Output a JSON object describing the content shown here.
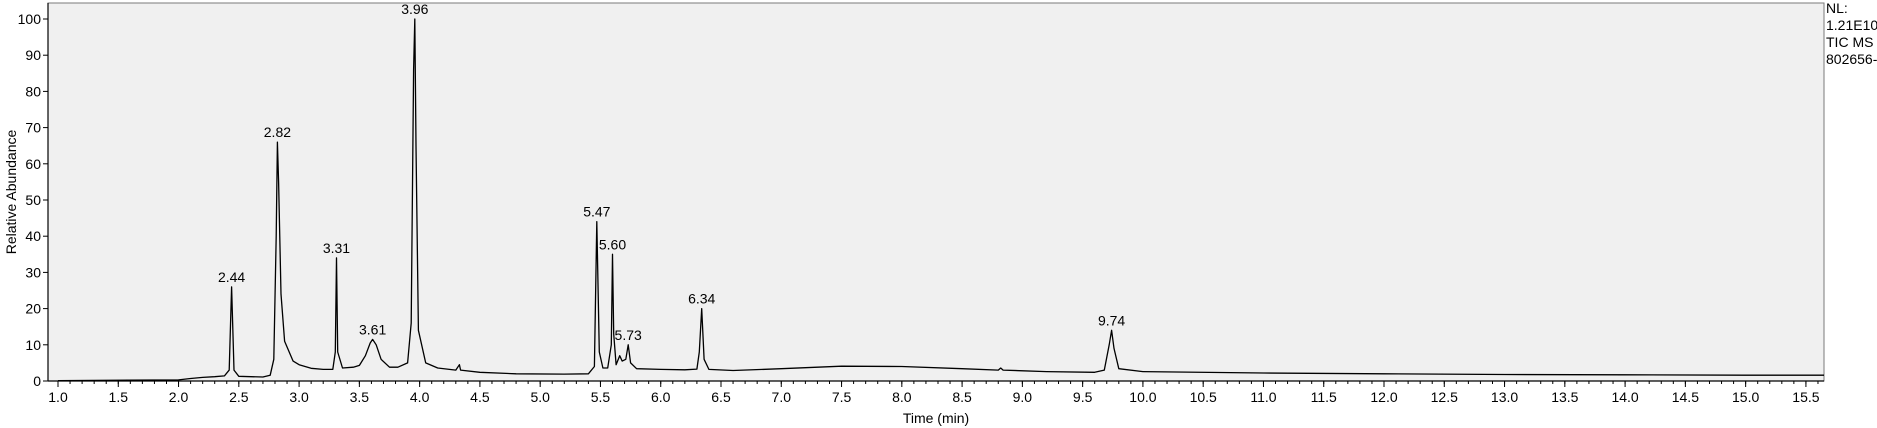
{
  "chart_data": {
    "type": "line",
    "title": "",
    "xlabel": "Time (min)",
    "ylabel": "Relative Abundance",
    "xlim": [
      1.0,
      15.65
    ],
    "ylim": [
      0,
      101
    ],
    "xticks": [
      1.0,
      1.5,
      2.0,
      2.5,
      3.0,
      3.5,
      4.0,
      4.5,
      5.0,
      5.5,
      6.0,
      6.5,
      7.0,
      7.5,
      8.0,
      8.5,
      9.0,
      9.5,
      10.0,
      10.5,
      11.0,
      11.5,
      12.0,
      12.5,
      13.0,
      13.5,
      14.0,
      14.5,
      15.0,
      15.5
    ],
    "xtick_labels": [
      "1.0",
      "1.5",
      "2.0",
      "2.5",
      "3.0",
      "3.5",
      "4.0",
      "4.5",
      "5.0",
      "5.5",
      "6.0",
      "6.5",
      "7.0",
      "7.5",
      "8.0",
      "8.5",
      "9.0",
      "9.5",
      "10.0",
      "10.5",
      "11.0",
      "11.5",
      "12.0",
      "12.5",
      "13.0",
      "13.5",
      "14.0",
      "14.5",
      "15.0",
      "15.5"
    ],
    "yticks": [
      0,
      10,
      20,
      30,
      40,
      50,
      60,
      70,
      80,
      90,
      100
    ],
    "ytick_labels": [
      "0",
      "10",
      "20",
      "30",
      "40",
      "50",
      "60",
      "70",
      "80",
      "90",
      "100"
    ],
    "grid": false,
    "background": "#f0f0f0",
    "line_color": "#000000",
    "peaks": [
      {
        "label": "2.44",
        "x": 2.44,
        "y": 26
      },
      {
        "label": "2.82",
        "x": 2.82,
        "y": 66
      },
      {
        "label": "3.31",
        "x": 3.31,
        "y": 34
      },
      {
        "label": "3.61",
        "x": 3.61,
        "y": 11.5
      },
      {
        "label": "3.96",
        "x": 3.96,
        "y": 100
      },
      {
        "label": "5.47",
        "x": 5.47,
        "y": 44
      },
      {
        "label": "5.60",
        "x": 5.6,
        "y": 35
      },
      {
        "label": "5.73",
        "x": 5.73,
        "y": 10
      },
      {
        "label": "6.34",
        "x": 6.34,
        "y": 20
      },
      {
        "label": "9.74",
        "x": 9.74,
        "y": 14
      }
    ],
    "series": [
      {
        "points": [
          [
            1.0,
            0.1
          ],
          [
            2.0,
            0.3
          ],
          [
            2.1,
            0.7
          ],
          [
            2.2,
            1.0
          ],
          [
            2.3,
            1.2
          ],
          [
            2.38,
            1.4
          ],
          [
            2.42,
            3
          ],
          [
            2.44,
            26
          ],
          [
            2.46,
            3
          ],
          [
            2.5,
            1.3
          ],
          [
            2.6,
            1.2
          ],
          [
            2.7,
            1.1
          ],
          [
            2.76,
            1.6
          ],
          [
            2.79,
            6
          ],
          [
            2.81,
            40
          ],
          [
            2.82,
            66
          ],
          [
            2.83,
            55
          ],
          [
            2.85,
            24
          ],
          [
            2.88,
            11
          ],
          [
            2.95,
            5.5
          ],
          [
            3.0,
            4.5
          ],
          [
            3.1,
            3.5
          ],
          [
            3.2,
            3.2
          ],
          [
            3.28,
            3.2
          ],
          [
            3.3,
            8
          ],
          [
            3.31,
            34
          ],
          [
            3.32,
            8
          ],
          [
            3.36,
            3.6
          ],
          [
            3.45,
            3.8
          ],
          [
            3.5,
            4.3
          ],
          [
            3.55,
            7
          ],
          [
            3.59,
            10.5
          ],
          [
            3.61,
            11.5
          ],
          [
            3.64,
            10
          ],
          [
            3.68,
            6
          ],
          [
            3.75,
            3.8
          ],
          [
            3.82,
            3.8
          ],
          [
            3.9,
            5
          ],
          [
            3.93,
            16
          ],
          [
            3.95,
            86
          ],
          [
            3.96,
            100
          ],
          [
            3.97,
            65
          ],
          [
            3.99,
            14
          ],
          [
            4.05,
            5
          ],
          [
            4.15,
            3.6
          ],
          [
            4.3,
            3
          ],
          [
            4.33,
            4.5
          ],
          [
            4.34,
            3
          ],
          [
            4.5,
            2.4
          ],
          [
            4.8,
            2
          ],
          [
            5.2,
            1.9
          ],
          [
            5.4,
            2
          ],
          [
            5.45,
            4
          ],
          [
            5.47,
            44
          ],
          [
            5.49,
            8
          ],
          [
            5.52,
            3.6
          ],
          [
            5.56,
            3.6
          ],
          [
            5.59,
            10
          ],
          [
            5.6,
            35
          ],
          [
            5.61,
            13
          ],
          [
            5.63,
            4.5
          ],
          [
            5.66,
            7
          ],
          [
            5.68,
            5.5
          ],
          [
            5.71,
            6
          ],
          [
            5.73,
            10
          ],
          [
            5.75,
            5
          ],
          [
            5.8,
            3.4
          ],
          [
            6.0,
            3.2
          ],
          [
            6.2,
            3.1
          ],
          [
            6.3,
            3.3
          ],
          [
            6.32,
            8
          ],
          [
            6.34,
            20
          ],
          [
            6.36,
            6
          ],
          [
            6.4,
            3.2
          ],
          [
            6.6,
            2.9
          ],
          [
            7.0,
            3.4
          ],
          [
            7.5,
            4.1
          ],
          [
            8.0,
            4
          ],
          [
            8.5,
            3.4
          ],
          [
            8.8,
            3
          ],
          [
            8.82,
            3.6
          ],
          [
            8.84,
            3
          ],
          [
            9.2,
            2.6
          ],
          [
            9.6,
            2.4
          ],
          [
            9.68,
            3
          ],
          [
            9.72,
            10
          ],
          [
            9.74,
            14
          ],
          [
            9.76,
            9
          ],
          [
            9.8,
            3.4
          ],
          [
            10.0,
            2.6
          ],
          [
            11.0,
            2.2
          ],
          [
            12.0,
            2
          ],
          [
            13.0,
            1.8
          ],
          [
            14.0,
            1.7
          ],
          [
            15.0,
            1.6
          ],
          [
            15.65,
            1.6
          ]
        ]
      }
    ]
  },
  "normalization": {
    "nl_label": "NL:",
    "nl_value": "1.21E10",
    "trace": "TIC  MS",
    "sample": "802656-"
  }
}
